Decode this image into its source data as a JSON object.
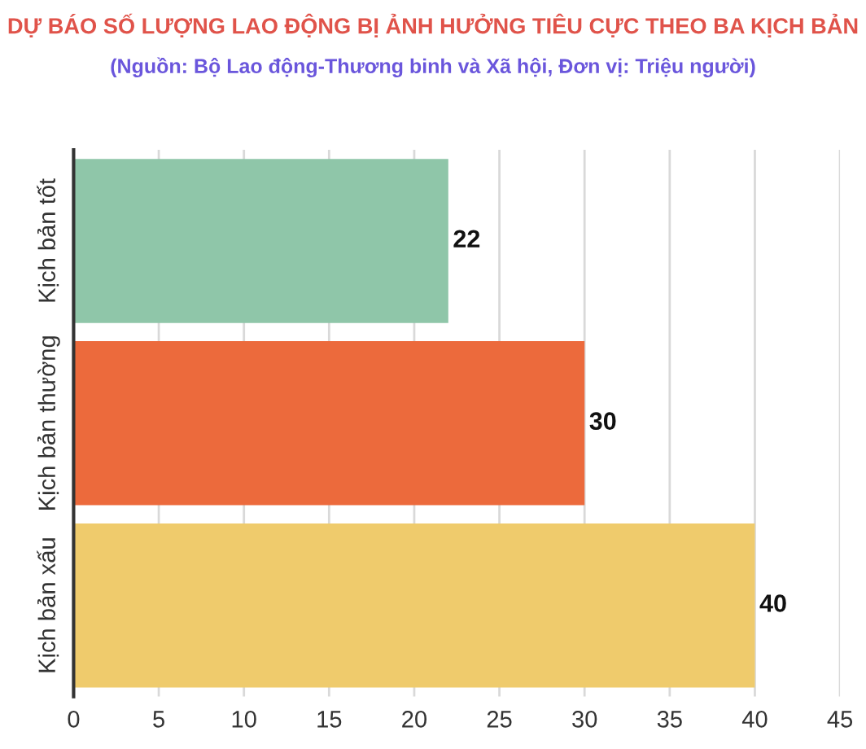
{
  "chart_data": {
    "type": "bar",
    "orientation": "horizontal",
    "title": "DỰ BÁO SỐ LƯỢNG LAO ĐỘNG BỊ ẢNH HƯỞNG TIÊU CỰC THEO BA KỊCH BẢN",
    "subtitle": "(Nguồn: Bộ Lao động-Thương binh và Xã hội, Đơn vị: Triệu người)",
    "categories": [
      "Kịch bản tốt",
      "Kịch bản thường",
      "Kịch bản xấu"
    ],
    "values": [
      22,
      30,
      40
    ],
    "colors": [
      "#8fc6a9",
      "#ec6a3c",
      "#efcb6c"
    ],
    "xlim": [
      0,
      45
    ],
    "xticks": [
      0,
      5,
      10,
      15,
      20,
      25,
      30,
      35,
      40,
      45
    ],
    "grid": "x",
    "data_labels": true
  }
}
